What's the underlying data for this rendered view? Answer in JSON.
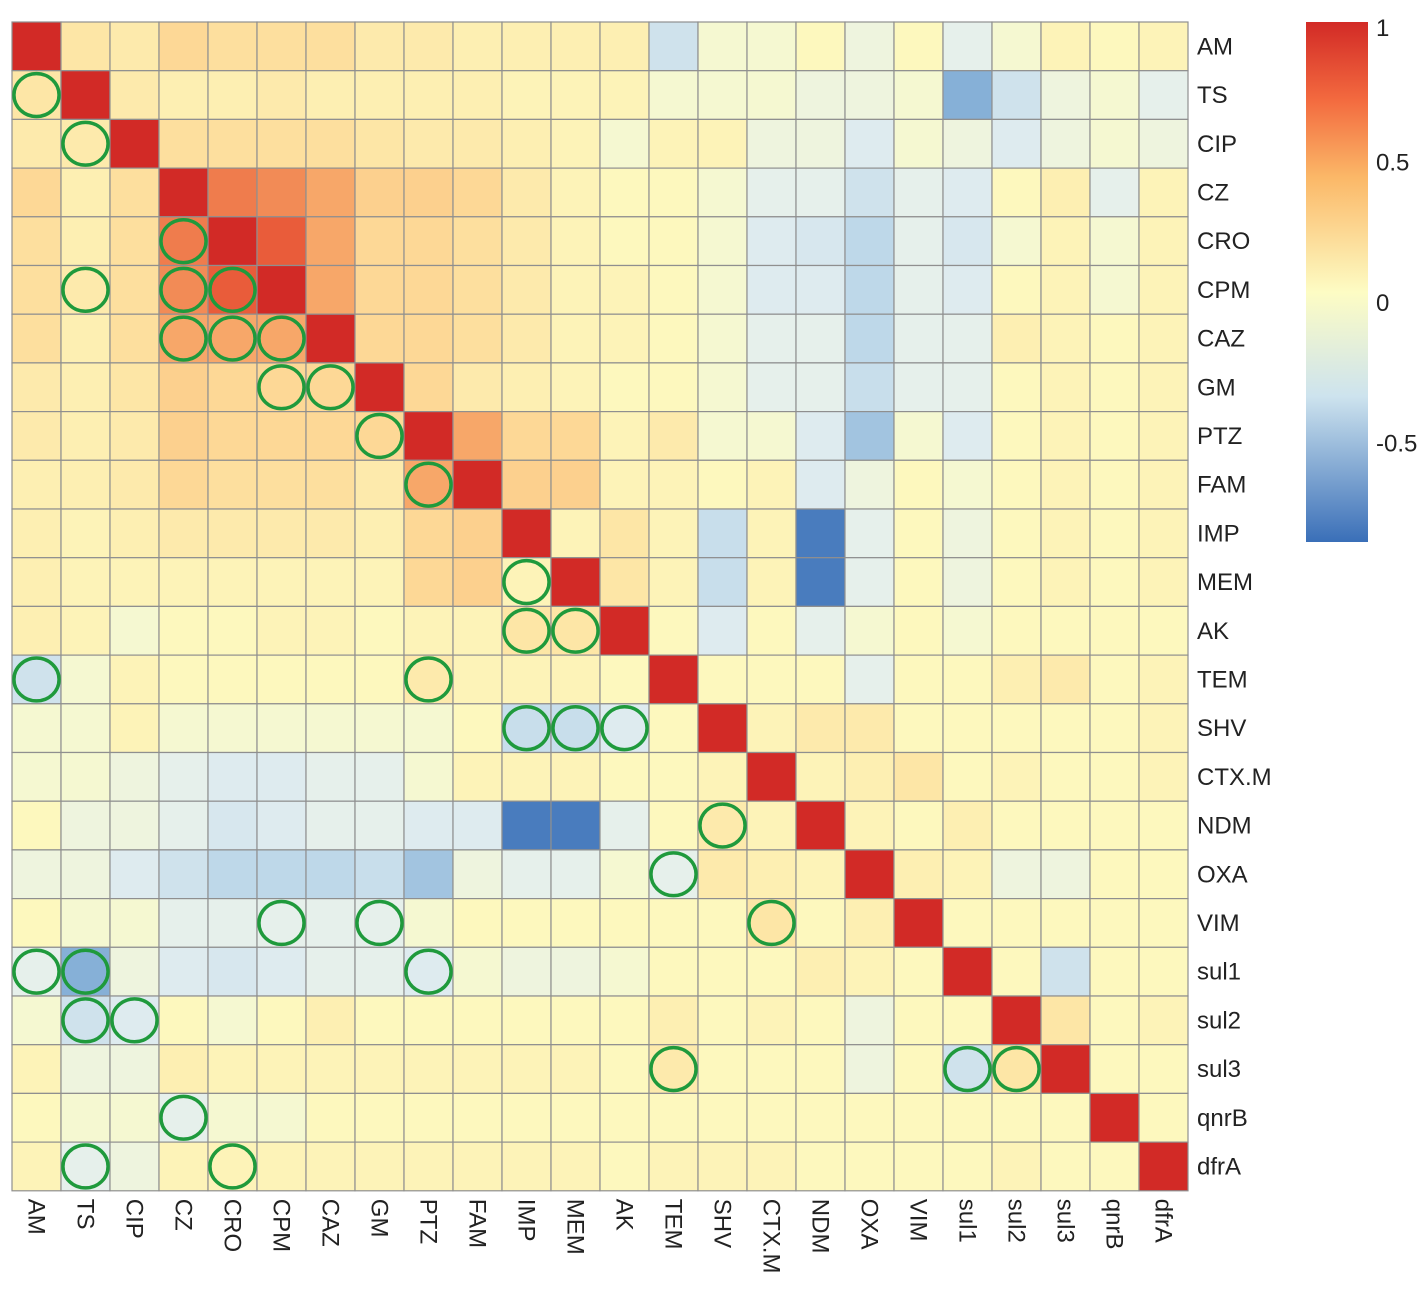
{
  "chart_data": {
    "type": "heatmap",
    "title": "",
    "variables": [
      "AM",
      "TS",
      "CIP",
      "CZ",
      "CRO",
      "CPM",
      "CAZ",
      "GM",
      "PTZ",
      "FAM",
      "IMP",
      "MEM",
      "AK",
      "TEM",
      "SHV",
      "CTX.M",
      "NDM",
      "OXA",
      "VIM",
      "sul1",
      "sul2",
      "sul3",
      "qnrB",
      "dfrA"
    ],
    "row_labels": [
      "AM",
      "TS",
      "CIP",
      "CZ",
      "CRO",
      "CPM",
      "CAZ",
      "GM",
      "PTZ",
      "FAM",
      "IMP",
      "MEM",
      "AK",
      "TEM",
      "SHV",
      "CTX.M",
      "NDM",
      "OXA",
      "VIM",
      "sul1",
      "sul2",
      "sul3",
      "qnrB",
      "dfrA"
    ],
    "column_labels": [
      "AM",
      "TS",
      "CIP",
      "CZ",
      "CRO",
      "CPM",
      "CAZ",
      "GM",
      "PTZ",
      "FAM",
      "IMP",
      "MEM",
      "AK",
      "TEM",
      "SHV",
      "CTX.M",
      "NDM",
      "OXA",
      "VIM",
      "sul1",
      "sul2",
      "sul3",
      "qnrB",
      "dfrA"
    ],
    "colorbar": {
      "min": -0.85,
      "max": 1,
      "ticks": [
        {
          "value": 1,
          "label": "1"
        },
        {
          "value": 0.5,
          "label": "0.5"
        },
        {
          "value": 0,
          "label": "0"
        },
        {
          "value": -0.5,
          "label": "-0.5"
        }
      ],
      "low_color": "#3a6fb8",
      "mid_color": "#fdfcc4",
      "high_color": "#d22a26"
    },
    "matrix": [
      [
        1.0,
        0.25,
        0.2,
        0.35,
        0.3,
        0.3,
        0.3,
        0.2,
        0.2,
        0.15,
        0.15,
        0.15,
        0.15,
        -0.3,
        -0.05,
        -0.05,
        0.05,
        -0.1,
        0.05,
        -0.15,
        -0.05,
        0.1,
        0.05,
        0.1
      ],
      [
        0.25,
        1.0,
        0.2,
        0.15,
        0.15,
        0.2,
        0.15,
        0.15,
        0.15,
        0.15,
        0.1,
        0.1,
        0.1,
        -0.05,
        -0.05,
        -0.05,
        -0.1,
        -0.1,
        -0.05,
        -0.6,
        -0.3,
        -0.1,
        -0.05,
        -0.15
      ],
      [
        0.2,
        0.2,
        1.0,
        0.3,
        0.3,
        0.3,
        0.3,
        0.25,
        0.2,
        0.2,
        0.15,
        0.1,
        -0.05,
        0.1,
        0.1,
        -0.1,
        -0.1,
        -0.2,
        -0.05,
        -0.1,
        -0.2,
        -0.1,
        -0.05,
        -0.1
      ],
      [
        0.35,
        0.15,
        0.3,
        1.0,
        0.75,
        0.7,
        0.6,
        0.4,
        0.4,
        0.35,
        0.2,
        0.1,
        0.05,
        0.05,
        -0.05,
        -0.15,
        -0.15,
        -0.3,
        -0.15,
        -0.2,
        0.05,
        0.15,
        -0.15,
        0.1
      ],
      [
        0.3,
        0.15,
        0.3,
        0.75,
        1.0,
        0.85,
        0.6,
        0.35,
        0.35,
        0.3,
        0.2,
        0.1,
        0.05,
        0.05,
        -0.05,
        -0.2,
        -0.25,
        -0.4,
        -0.15,
        -0.25,
        -0.05,
        0.1,
        -0.05,
        0.1
      ],
      [
        0.3,
        0.2,
        0.3,
        0.7,
        0.85,
        1.0,
        0.6,
        0.35,
        0.35,
        0.3,
        0.2,
        0.1,
        0.1,
        0.05,
        -0.05,
        -0.2,
        -0.2,
        -0.4,
        -0.15,
        -0.2,
        0.05,
        0.1,
        -0.05,
        0.1
      ],
      [
        0.3,
        0.15,
        0.3,
        0.6,
        0.6,
        0.6,
        1.0,
        0.35,
        0.35,
        0.3,
        0.2,
        0.1,
        0.1,
        0.05,
        -0.05,
        -0.15,
        -0.15,
        -0.4,
        -0.15,
        -0.15,
        0.15,
        0.1,
        0.05,
        0.1
      ],
      [
        0.2,
        0.15,
        0.25,
        0.4,
        0.35,
        0.35,
        0.35,
        1.0,
        0.35,
        0.2,
        0.15,
        0.1,
        0.05,
        0.05,
        -0.05,
        -0.15,
        -0.15,
        -0.35,
        -0.15,
        -0.15,
        0.05,
        0.1,
        0.05,
        0.1
      ],
      [
        0.2,
        0.15,
        0.2,
        0.4,
        0.35,
        0.35,
        0.35,
        0.35,
        1.0,
        0.6,
        0.35,
        0.35,
        0.1,
        0.2,
        -0.05,
        -0.05,
        -0.2,
        -0.5,
        -0.05,
        -0.2,
        0.05,
        0.1,
        0.05,
        0.1
      ],
      [
        0.15,
        0.15,
        0.2,
        0.35,
        0.3,
        0.3,
        0.3,
        0.2,
        0.6,
        1.0,
        0.4,
        0.4,
        0.1,
        0.1,
        0.05,
        0.1,
        -0.2,
        -0.1,
        0.05,
        -0.05,
        0.05,
        0.1,
        0.05,
        0.1
      ],
      [
        0.15,
        0.1,
        0.15,
        0.2,
        0.2,
        0.2,
        0.2,
        0.15,
        0.35,
        0.4,
        1.0,
        0.1,
        0.25,
        0.1,
        -0.35,
        0.1,
        -0.8,
        -0.15,
        0.05,
        -0.1,
        0.05,
        0.1,
        0.05,
        0.1
      ],
      [
        0.15,
        0.1,
        0.1,
        0.1,
        0.1,
        0.1,
        0.1,
        0.1,
        0.35,
        0.4,
        0.1,
        1.0,
        0.25,
        0.1,
        -0.35,
        0.1,
        -0.8,
        -0.15,
        0.05,
        -0.1,
        0.05,
        0.1,
        0.05,
        0.1
      ],
      [
        0.15,
        0.1,
        -0.05,
        0.05,
        0.05,
        0.1,
        0.1,
        0.05,
        0.1,
        0.1,
        0.25,
        0.25,
        1.0,
        0.05,
        -0.2,
        0.05,
        -0.15,
        -0.05,
        0.05,
        -0.05,
        0.05,
        0.05,
        0.05,
        0.05
      ],
      [
        -0.3,
        -0.05,
        0.1,
        0.05,
        0.05,
        0.05,
        0.05,
        0.05,
        0.2,
        0.1,
        0.1,
        0.1,
        0.05,
        1.0,
        0.05,
        0.05,
        0.05,
        -0.15,
        0.05,
        0.05,
        0.15,
        0.2,
        0.05,
        0.1
      ],
      [
        -0.05,
        -0.05,
        0.1,
        -0.05,
        -0.05,
        -0.05,
        -0.05,
        -0.05,
        -0.05,
        0.05,
        -0.35,
        -0.35,
        -0.2,
        0.05,
        1.0,
        0.1,
        0.2,
        0.2,
        0.05,
        0.05,
        0.05,
        0.05,
        0.05,
        0.1
      ],
      [
        -0.05,
        -0.05,
        -0.1,
        -0.15,
        -0.2,
        -0.2,
        -0.15,
        -0.15,
        -0.05,
        0.1,
        0.1,
        0.1,
        0.05,
        0.05,
        0.1,
        1.0,
        0.1,
        0.15,
        0.25,
        0.05,
        0.1,
        0.05,
        0.05,
        0.1
      ],
      [
        0.05,
        -0.1,
        -0.1,
        -0.15,
        -0.25,
        -0.2,
        -0.15,
        -0.15,
        -0.2,
        -0.2,
        -0.8,
        -0.8,
        -0.15,
        0.05,
        0.2,
        0.1,
        1.0,
        0.1,
        0.05,
        0.15,
        0.05,
        0.05,
        0.05,
        0.05
      ],
      [
        -0.1,
        -0.1,
        -0.2,
        -0.3,
        -0.4,
        -0.4,
        -0.4,
        -0.35,
        -0.5,
        -0.1,
        -0.15,
        -0.15,
        -0.05,
        -0.15,
        0.2,
        0.15,
        0.1,
        1.0,
        0.15,
        0.1,
        -0.1,
        -0.1,
        0.05,
        0.05
      ],
      [
        0.05,
        -0.05,
        -0.05,
        -0.15,
        -0.15,
        -0.15,
        -0.15,
        -0.15,
        -0.05,
        0.05,
        0.05,
        0.05,
        0.05,
        0.05,
        0.05,
        0.25,
        0.05,
        0.15,
        1.0,
        0.05,
        0.05,
        0.05,
        0.05,
        0.05
      ],
      [
        -0.15,
        -0.6,
        -0.1,
        -0.2,
        -0.25,
        -0.2,
        -0.15,
        -0.15,
        -0.2,
        -0.05,
        -0.1,
        -0.1,
        -0.05,
        0.05,
        0.05,
        0.05,
        0.15,
        0.1,
        0.05,
        1.0,
        0.05,
        -0.3,
        0.05,
        0.05
      ],
      [
        -0.05,
        -0.3,
        -0.2,
        0.05,
        -0.05,
        0.05,
        0.15,
        0.05,
        0.05,
        0.05,
        0.05,
        0.05,
        0.05,
        0.15,
        0.05,
        0.1,
        0.05,
        -0.1,
        0.05,
        0.05,
        1.0,
        0.25,
        0.05,
        0.1
      ],
      [
        0.1,
        -0.1,
        -0.1,
        0.15,
        0.1,
        0.1,
        0.1,
        0.1,
        0.1,
        0.1,
        0.1,
        0.1,
        0.05,
        0.2,
        0.05,
        0.05,
        0.05,
        -0.1,
        0.05,
        -0.3,
        0.25,
        1.0,
        0.05,
        0.05
      ],
      [
        0.05,
        -0.05,
        -0.05,
        -0.15,
        -0.05,
        -0.05,
        0.05,
        0.05,
        0.05,
        0.05,
        0.05,
        0.05,
        0.05,
        0.05,
        0.05,
        0.05,
        0.05,
        0.05,
        0.05,
        0.05,
        0.05,
        0.05,
        1.0,
        0.05
      ],
      [
        0.1,
        -0.15,
        -0.1,
        0.1,
        0.1,
        0.1,
        0.1,
        0.1,
        0.1,
        0.1,
        0.1,
        0.1,
        0.05,
        0.1,
        0.1,
        0.1,
        0.05,
        0.05,
        0.05,
        0.05,
        0.1,
        0.05,
        0.05,
        1.0
      ]
    ],
    "highlighted_cells": [
      {
        "row": "TS",
        "col": "AM"
      },
      {
        "row": "CIP",
        "col": "TS"
      },
      {
        "row": "CRO",
        "col": "CZ"
      },
      {
        "row": "CPM",
        "col": "TS"
      },
      {
        "row": "CPM",
        "col": "CZ"
      },
      {
        "row": "CPM",
        "col": "CRO"
      },
      {
        "row": "CAZ",
        "col": "CZ"
      },
      {
        "row": "CAZ",
        "col": "CRO"
      },
      {
        "row": "CAZ",
        "col": "CPM"
      },
      {
        "row": "GM",
        "col": "CPM"
      },
      {
        "row": "GM",
        "col": "CAZ"
      },
      {
        "row": "PTZ",
        "col": "GM"
      },
      {
        "row": "FAM",
        "col": "PTZ"
      },
      {
        "row": "MEM",
        "col": "IMP"
      },
      {
        "row": "AK",
        "col": "IMP"
      },
      {
        "row": "AK",
        "col": "MEM"
      },
      {
        "row": "TEM",
        "col": "AM"
      },
      {
        "row": "TEM",
        "col": "PTZ"
      },
      {
        "row": "SHV",
        "col": "IMP"
      },
      {
        "row": "SHV",
        "col": "MEM"
      },
      {
        "row": "SHV",
        "col": "AK"
      },
      {
        "row": "NDM",
        "col": "SHV"
      },
      {
        "row": "OXA",
        "col": "TEM"
      },
      {
        "row": "VIM",
        "col": "CPM"
      },
      {
        "row": "VIM",
        "col": "GM"
      },
      {
        "row": "VIM",
        "col": "CTX.M"
      },
      {
        "row": "sul1",
        "col": "AM"
      },
      {
        "row": "sul1",
        "col": "TS"
      },
      {
        "row": "sul1",
        "col": "PTZ"
      },
      {
        "row": "sul2",
        "col": "TS"
      },
      {
        "row": "sul2",
        "col": "CIP"
      },
      {
        "row": "sul3",
        "col": "TEM"
      },
      {
        "row": "sul3",
        "col": "sul1"
      },
      {
        "row": "sul3",
        "col": "sul2"
      },
      {
        "row": "qnrB",
        "col": "CZ"
      },
      {
        "row": "dfrA",
        "col": "TS"
      },
      {
        "row": "dfrA",
        "col": "CRO"
      }
    ],
    "highlight_color": "#1f9a3c"
  }
}
